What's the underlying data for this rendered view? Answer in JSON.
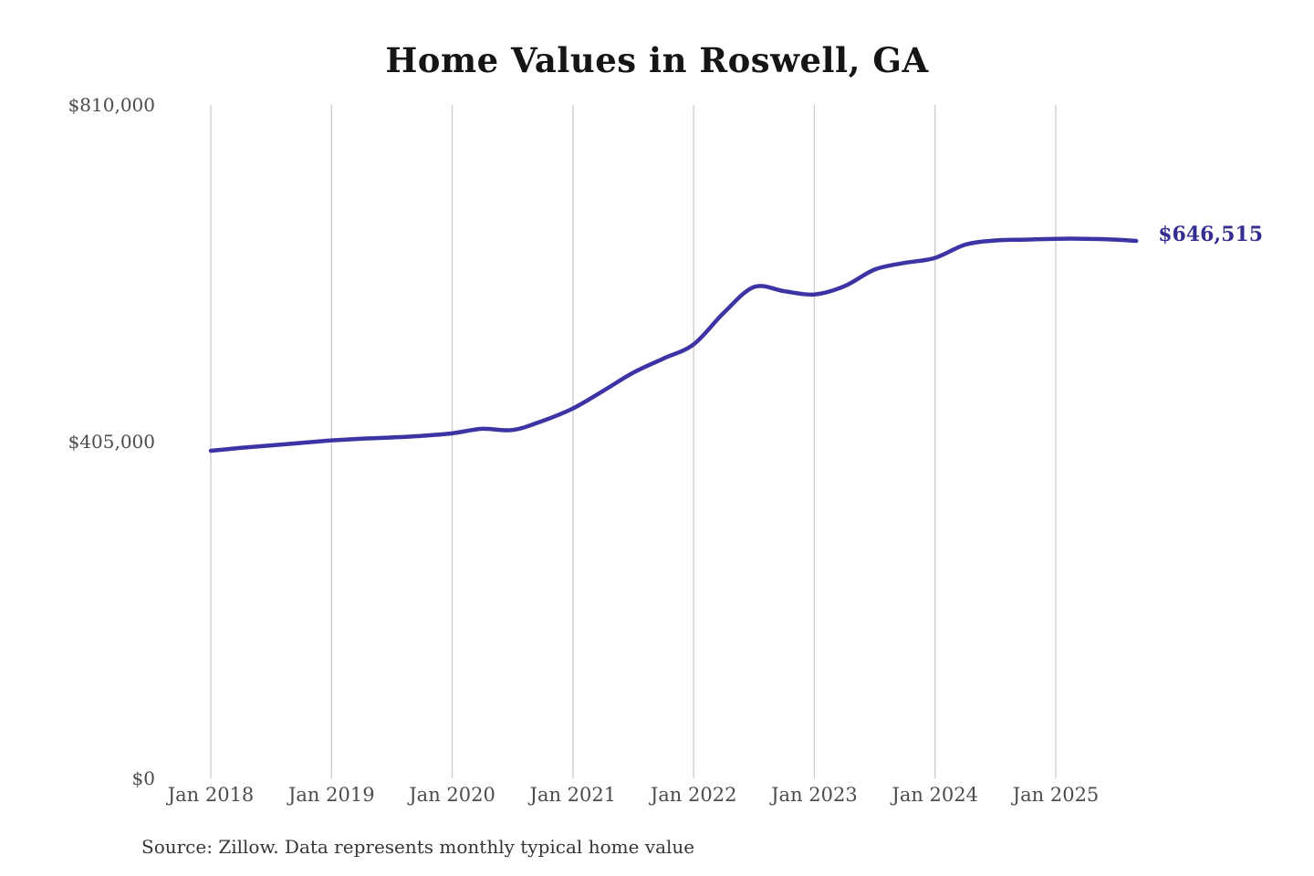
{
  "page": {
    "source_note": "Source: Zillow. Data represents monthly typical home value"
  },
  "chart_data": {
    "type": "line",
    "title": "Home Values in Roswell, GA",
    "ylabel": "",
    "xlabel": "",
    "ylim": [
      0,
      810000
    ],
    "grid": "vertical-only",
    "legend": "none",
    "end_label": "$646,515",
    "end_value": 646515,
    "colors": {
      "line": "#3c34a4",
      "end_label_text": "#342e92",
      "grid": "#cccccc",
      "tick_text": "#4c4c4c",
      "title_text": "#151515",
      "source_text": "#363636",
      "background": "#ffffff"
    },
    "y_ticks": [
      {
        "label": "$810,000",
        "value": 810000
      },
      {
        "label": "$405,000",
        "value": 405000
      },
      {
        "label": "$0",
        "value": 0
      }
    ],
    "x_ticks": [
      "Jan 2018",
      "Jan 2019",
      "Jan 2020",
      "Jan 2021",
      "Jan 2022",
      "Jan 2023",
      "Jan 2024",
      "Jan 2025"
    ],
    "series": [
      {
        "name": "Monthly typical home value",
        "points": [
          {
            "date": "Jan 2018",
            "value": 394000
          },
          {
            "date": "Apr 2018",
            "value": 397500
          },
          {
            "date": "Jul 2018",
            "value": 400500
          },
          {
            "date": "Oct 2018",
            "value": 403500
          },
          {
            "date": "Jan 2019",
            "value": 406500
          },
          {
            "date": "Apr 2019",
            "value": 408500
          },
          {
            "date": "Jul 2019",
            "value": 410000
          },
          {
            "date": "Oct 2019",
            "value": 412000
          },
          {
            "date": "Jan 2020",
            "value": 415000
          },
          {
            "date": "Apr 2020",
            "value": 420500
          },
          {
            "date": "Jul 2020",
            "value": 419000
          },
          {
            "date": "Oct 2020",
            "value": 430000
          },
          {
            "date": "Jan 2021",
            "value": 445000
          },
          {
            "date": "Apr 2021",
            "value": 466000
          },
          {
            "date": "Jul 2021",
            "value": 488000
          },
          {
            "date": "Oct 2021",
            "value": 505000
          },
          {
            "date": "Jan 2022",
            "value": 522000
          },
          {
            "date": "Apr 2022",
            "value": 560000
          },
          {
            "date": "Jul 2022",
            "value": 591000
          },
          {
            "date": "Oct 2022",
            "value": 586000
          },
          {
            "date": "Jan 2023",
            "value": 582000
          },
          {
            "date": "Apr 2023",
            "value": 592000
          },
          {
            "date": "Jul 2023",
            "value": 612000
          },
          {
            "date": "Oct 2023",
            "value": 620000
          },
          {
            "date": "Jan 2024",
            "value": 626000
          },
          {
            "date": "Apr 2024",
            "value": 642000
          },
          {
            "date": "Jul 2024",
            "value": 647000
          },
          {
            "date": "Oct 2024",
            "value": 648000
          },
          {
            "date": "Jan 2025",
            "value": 649000
          },
          {
            "date": "Apr 2025",
            "value": 649000
          },
          {
            "date": "Jul 2025",
            "value": 648000
          },
          {
            "date": "Sep 2025",
            "value": 646515
          }
        ]
      }
    ]
  }
}
